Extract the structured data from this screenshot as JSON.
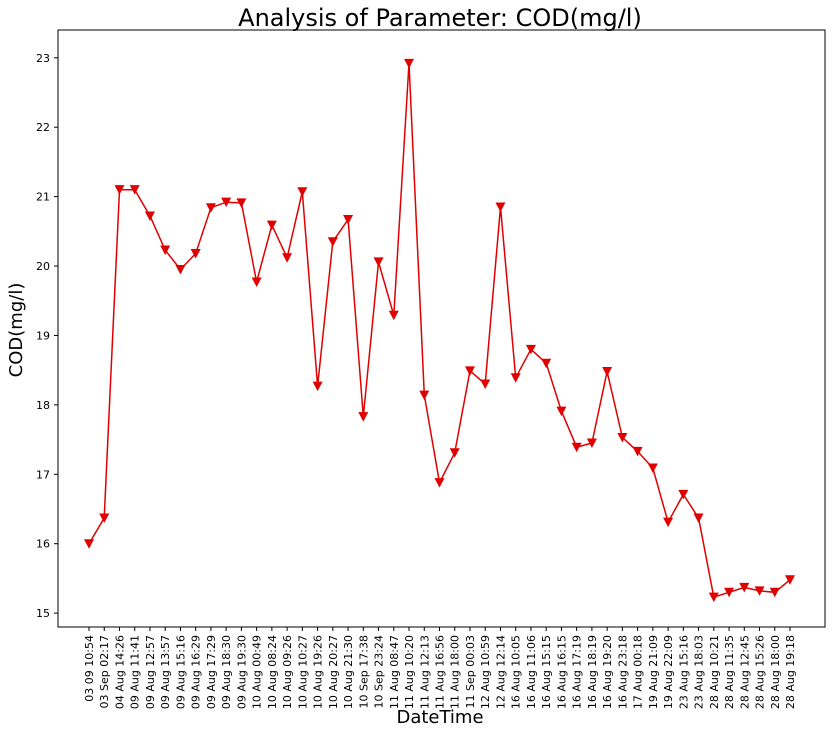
{
  "chart_data": {
    "type": "line",
    "title": "Analysis of Parameter: COD(mg/l)",
    "xlabel": "DateTime",
    "ylabel": "COD(mg/l)",
    "ylim": [
      14.8,
      23.4
    ],
    "yticks": [
      15,
      16,
      17,
      18,
      19,
      20,
      21,
      22,
      23
    ],
    "grid": false,
    "marker": "triangle-down",
    "color": "#e00000",
    "x": [
      "03 09 10:54",
      "03 Sep 02:17",
      "04 Aug 14:26",
      "09 Aug 11:41",
      "09 Aug 12:57",
      "09 Aug 13:57",
      "09 Aug 15:16",
      "09 Aug 16:29",
      "09 Aug 17:29",
      "09 Aug 18:30",
      "09 Aug 19:30",
      "10 Aug 00:49",
      "10 Aug 08:24",
      "10 Aug 09:26",
      "10 Aug 10:27",
      "10 Aug 19:26",
      "10 Aug 20:27",
      "10 Aug 21:30",
      "10 Sep 17:38",
      "10 Sep 23:24",
      "11 Aug 08:47",
      "11 Aug 10:20",
      "11 Aug 12:13",
      "11 Aug 16:56",
      "11 Aug 18:00",
      "11 Sep 00:03",
      "12 Aug 10:59",
      "12 Aug 12:14",
      "16 Aug 10:05",
      "16 Aug 11:06",
      "16 Aug 15:15",
      "16 Aug 16:15",
      "16 Aug 17:19",
      "16 Aug 18:19",
      "16 Aug 19:20",
      "16 Aug 23:18",
      "17 Aug 00:18",
      "19 Aug 21:09",
      "19 Aug 22:09",
      "23 Aug 15:16",
      "23 Aug 18:03",
      "28 Aug 10:21",
      "28 Aug 11:35",
      "28 Aug 12:45",
      "28 Aug 15:26",
      "28 Aug 18:00",
      "28 Aug 19:18"
    ],
    "values": [
      16.0,
      16.37,
      21.1,
      21.1,
      20.72,
      20.23,
      19.95,
      20.18,
      20.84,
      20.92,
      20.91,
      19.77,
      20.59,
      20.12,
      21.07,
      18.27,
      20.35,
      20.67,
      17.83,
      20.06,
      19.29,
      22.92,
      18.14,
      16.88,
      17.31,
      18.49,
      18.3,
      20.85,
      18.39,
      18.8,
      18.6,
      17.91,
      17.39,
      17.45,
      18.48,
      17.53,
      17.33,
      17.09,
      16.31,
      16.71,
      16.37,
      15.23,
      15.3,
      15.37,
      15.32,
      15.3,
      15.48
    ]
  }
}
